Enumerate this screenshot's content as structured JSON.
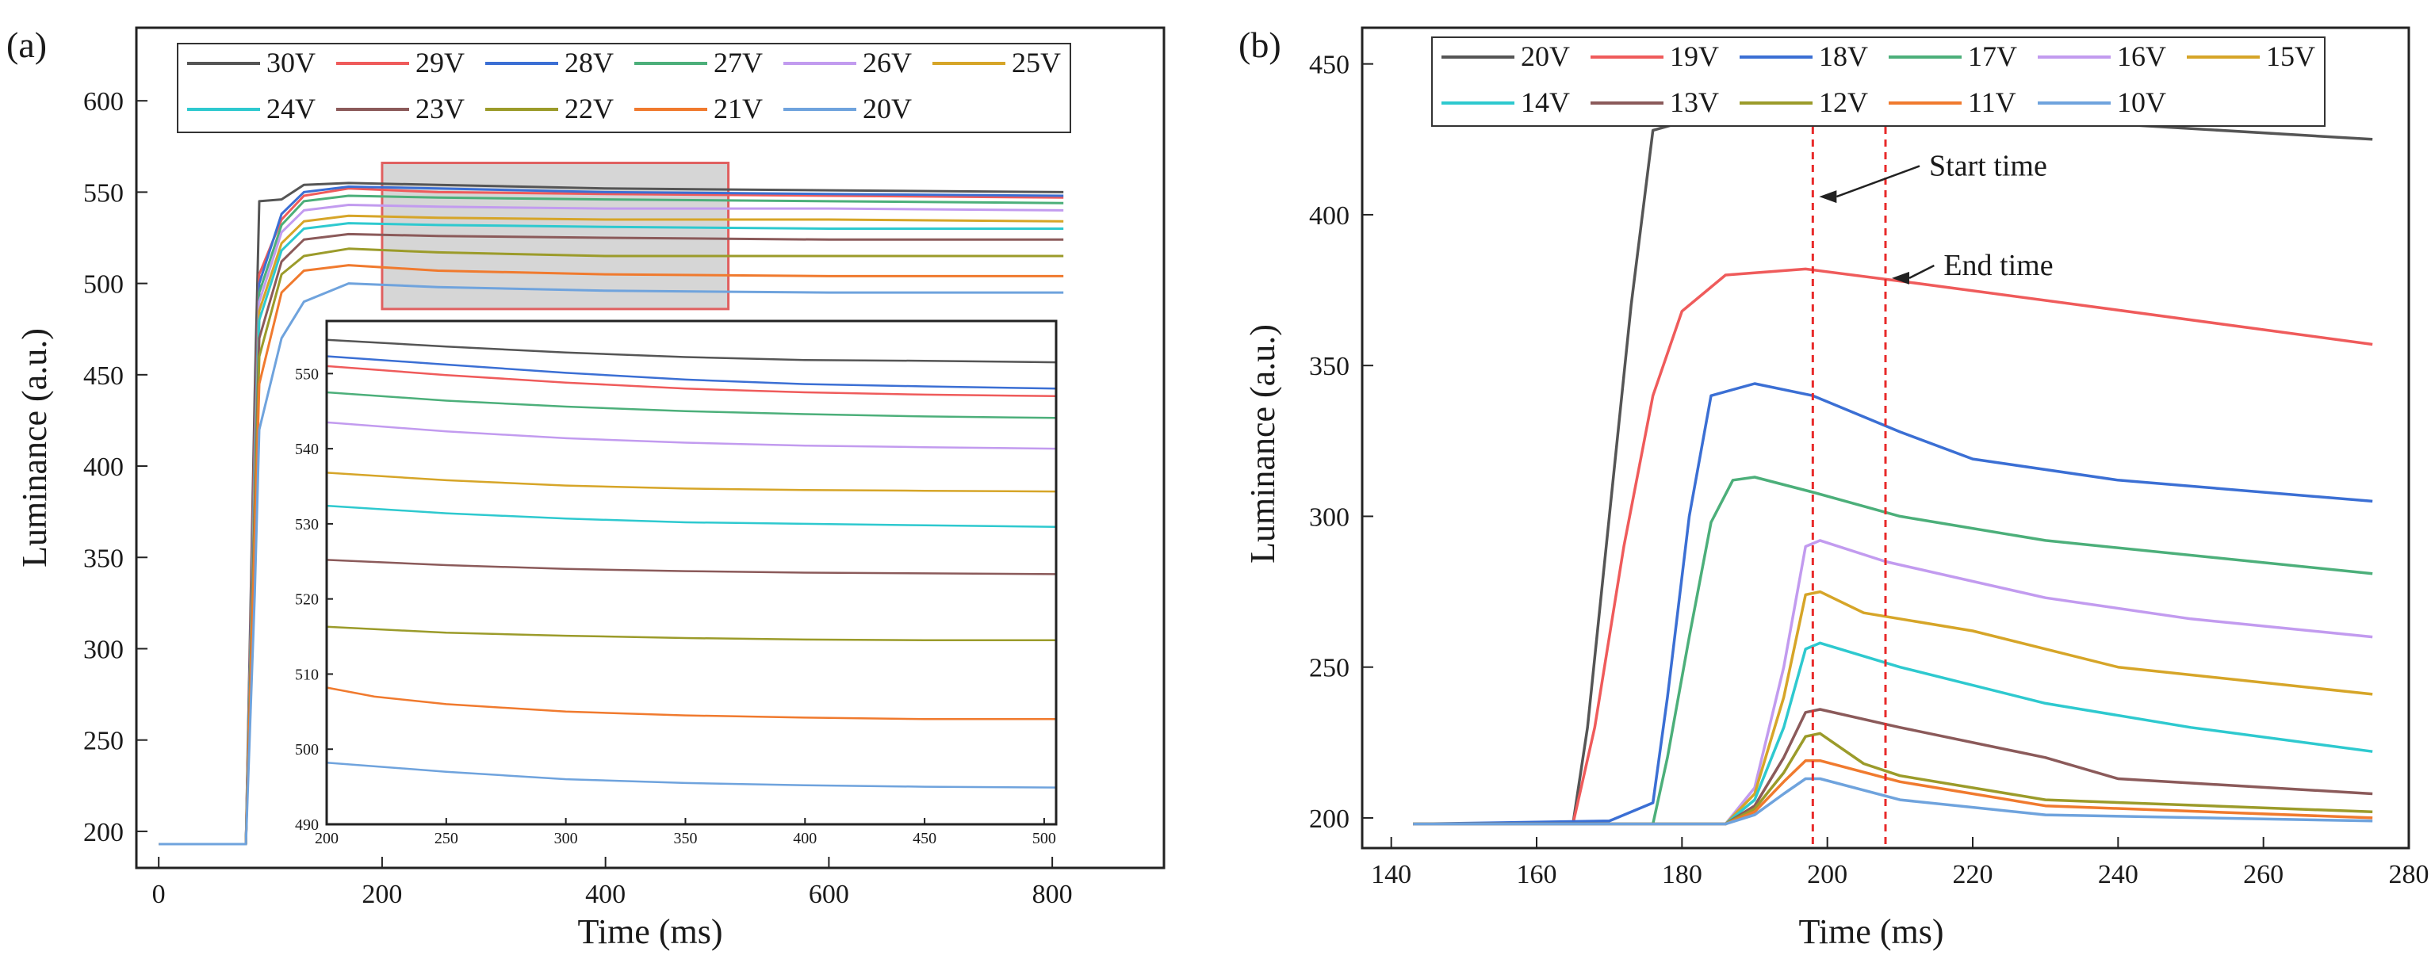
{
  "chart_data": [
    {
      "panel": "(a)",
      "type": "line",
      "xlabel": "Time (ms)",
      "ylabel": "Luminance (a.u.)",
      "xlim": [
        -20,
        900
      ],
      "ylim": [
        180,
        640
      ],
      "xticks": [
        "0",
        "200",
        "400",
        "600",
        "800"
      ],
      "yticks": [
        "200",
        "250",
        "300",
        "350",
        "400",
        "450",
        "500",
        "550",
        "600"
      ],
      "legend_position": "top",
      "highlight_region": {
        "x": [
          200,
          510
        ],
        "y": [
          486,
          566
        ]
      },
      "series": [
        {
          "name": "30V",
          "color": "#555555",
          "x": [
            0,
            78,
            86,
            90,
            110,
            130,
            170,
            250,
            400,
            600,
            810
          ],
          "y": [
            193,
            193,
            440,
            545,
            546,
            554,
            555,
            554,
            552,
            551,
            550
          ]
        },
        {
          "name": "29V",
          "color": "#ef5b5b",
          "x": [
            0,
            78,
            86,
            90,
            110,
            130,
            170,
            250,
            400,
            600,
            810
          ],
          "y": [
            193,
            193,
            420,
            505,
            535,
            548,
            552,
            550,
            549,
            548,
            547
          ]
        },
        {
          "name": "28V",
          "color": "#3b6fd4",
          "x": [
            0,
            78,
            86,
            90,
            110,
            130,
            170,
            250,
            400,
            600,
            810
          ],
          "y": [
            193,
            193,
            410,
            500,
            538,
            550,
            553,
            552,
            550,
            549,
            548
          ]
        },
        {
          "name": "27V",
          "color": "#4caf7a",
          "x": [
            0,
            78,
            86,
            90,
            110,
            130,
            170,
            250,
            400,
            600,
            810
          ],
          "y": [
            193,
            193,
            400,
            495,
            532,
            545,
            548,
            547,
            546,
            545,
            544
          ]
        },
        {
          "name": "26V",
          "color": "#c29bef",
          "x": [
            0,
            78,
            86,
            90,
            110,
            130,
            170,
            250,
            400,
            600,
            810
          ],
          "y": [
            193,
            193,
            395,
            490,
            528,
            540,
            543,
            542,
            541,
            541,
            540
          ]
        },
        {
          "name": "25V",
          "color": "#d6a528",
          "x": [
            0,
            78,
            86,
            90,
            110,
            130,
            170,
            250,
            400,
            600,
            810
          ],
          "y": [
            193,
            193,
            390,
            485,
            522,
            534,
            537,
            536,
            535,
            535,
            534
          ]
        },
        {
          "name": "24V",
          "color": "#2ec9cf",
          "x": [
            0,
            78,
            86,
            90,
            110,
            130,
            170,
            250,
            400,
            600,
            810
          ],
          "y": [
            193,
            193,
            385,
            480,
            518,
            530,
            533,
            532,
            531,
            530,
            530
          ]
        },
        {
          "name": "23V",
          "color": "#8b5a5a",
          "x": [
            0,
            78,
            86,
            90,
            110,
            130,
            170,
            250,
            400,
            600,
            810
          ],
          "y": [
            193,
            193,
            380,
            470,
            512,
            524,
            527,
            526,
            525,
            524,
            524
          ]
        },
        {
          "name": "22V",
          "color": "#9b9b2a",
          "x": [
            0,
            78,
            86,
            90,
            110,
            130,
            170,
            250,
            400,
            600,
            810
          ],
          "y": [
            193,
            193,
            370,
            460,
            505,
            515,
            519,
            517,
            515,
            515,
            515
          ]
        },
        {
          "name": "21V",
          "color": "#f07a2e",
          "x": [
            0,
            78,
            86,
            90,
            110,
            130,
            170,
            250,
            400,
            600,
            810
          ],
          "y": [
            193,
            193,
            360,
            445,
            495,
            507,
            510,
            507,
            505,
            504,
            504
          ]
        },
        {
          "name": "20V",
          "color": "#6fa3dd",
          "x": [
            0,
            78,
            86,
            90,
            110,
            130,
            170,
            250,
            400,
            600,
            810
          ],
          "y": [
            193,
            193,
            330,
            420,
            470,
            490,
            500,
            498,
            496,
            495,
            495
          ]
        }
      ]
    },
    {
      "panel": "inset",
      "type": "line",
      "xlim": [
        200,
        505
      ],
      "ylim": [
        490,
        557
      ],
      "xticks": [
        "200",
        "250",
        "300",
        "350",
        "400",
        "450",
        "500"
      ],
      "yticks": [
        "490",
        "500",
        "510",
        "520",
        "530",
        "540",
        "550"
      ],
      "series": [
        {
          "name": "30V",
          "color": "#555555",
          "x": [
            200,
            250,
            300,
            350,
            400,
            450,
            505
          ],
          "y": [
            554.5,
            553.6,
            552.8,
            552.2,
            551.8,
            551.7,
            551.5
          ]
        },
        {
          "name": "28V",
          "color": "#3b6fd4",
          "x": [
            200,
            250,
            300,
            350,
            400,
            450,
            505
          ],
          "y": [
            552.3,
            551.2,
            550.1,
            549.2,
            548.6,
            548.3,
            548.0
          ]
        },
        {
          "name": "29V",
          "color": "#ef5b5b",
          "x": [
            200,
            250,
            300,
            350,
            400,
            450,
            505
          ],
          "y": [
            551.0,
            549.8,
            548.8,
            548.0,
            547.5,
            547.2,
            547.0
          ]
        },
        {
          "name": "27V",
          "color": "#4caf7a",
          "x": [
            200,
            250,
            300,
            350,
            400,
            450,
            505
          ],
          "y": [
            547.5,
            546.4,
            545.6,
            545.0,
            544.6,
            544.3,
            544.1
          ]
        },
        {
          "name": "26V",
          "color": "#c29bef",
          "x": [
            200,
            250,
            300,
            350,
            400,
            450,
            505
          ],
          "y": [
            543.5,
            542.3,
            541.4,
            540.8,
            540.4,
            540.2,
            540.0
          ]
        },
        {
          "name": "25V",
          "color": "#d6a528",
          "x": [
            200,
            250,
            300,
            350,
            400,
            450,
            505
          ],
          "y": [
            536.8,
            535.8,
            535.1,
            534.7,
            534.5,
            534.4,
            534.3
          ]
        },
        {
          "name": "24V",
          "color": "#2ec9cf",
          "x": [
            200,
            250,
            300,
            350,
            400,
            450,
            505
          ],
          "y": [
            532.4,
            531.4,
            530.7,
            530.2,
            530.0,
            529.8,
            529.6
          ]
        },
        {
          "name": "23V",
          "color": "#8b5a5a",
          "x": [
            200,
            250,
            300,
            350,
            400,
            450,
            505
          ],
          "y": [
            525.2,
            524.5,
            524.0,
            523.7,
            523.5,
            523.4,
            523.3
          ]
        },
        {
          "name": "22V",
          "color": "#9b9b2a",
          "x": [
            200,
            250,
            300,
            350,
            400,
            450,
            505
          ],
          "y": [
            516.3,
            515.5,
            515.1,
            514.8,
            514.6,
            514.5,
            514.5
          ]
        },
        {
          "name": "21V",
          "color": "#f07a2e",
          "x": [
            200,
            220,
            250,
            300,
            350,
            400,
            450,
            505
          ],
          "y": [
            508.2,
            507.0,
            506.0,
            505.0,
            504.5,
            504.2,
            504.0,
            504.0
          ]
        },
        {
          "name": "20V",
          "color": "#6fa3dd",
          "x": [
            200,
            250,
            300,
            350,
            400,
            450,
            505
          ],
          "y": [
            498.2,
            497.0,
            496.0,
            495.5,
            495.2,
            495.0,
            494.9
          ]
        }
      ]
    },
    {
      "panel": "(b)",
      "type": "line",
      "xlabel": "Time (ms)",
      "ylabel": "Luminance (a.u.)",
      "xlim": [
        136,
        280
      ],
      "ylim": [
        190,
        462
      ],
      "xticks": [
        "140",
        "160",
        "180",
        "200",
        "220",
        "240",
        "260",
        "280"
      ],
      "yticks": [
        "200",
        "250",
        "300",
        "350",
        "400",
        "450"
      ],
      "legend_position": "top",
      "vlines": [
        198,
        208
      ],
      "annotations": [
        {
          "text": "Start time",
          "x": 198,
          "y": 406,
          "text_x": 214,
          "text_y": 413
        },
        {
          "text": "End time",
          "x": 208,
          "y": 379,
          "text_x": 216,
          "text_y": 380
        }
      ],
      "series": [
        {
          "name": "20V",
          "color": "#555555",
          "x": [
            143,
            165,
            167,
            170,
            173,
            176,
            185,
            198,
            215,
            240,
            275
          ],
          "y": [
            198,
            198,
            230,
            300,
            370,
            428,
            434,
            435,
            432,
            430,
            425
          ]
        },
        {
          "name": "19V",
          "color": "#ef5b5b",
          "x": [
            143,
            165,
            168,
            172,
            176,
            180,
            186,
            197,
            210,
            235,
            275
          ],
          "y": [
            198,
            198,
            230,
            290,
            340,
            368,
            380,
            382,
            378,
            370,
            357
          ]
        },
        {
          "name": "18V",
          "color": "#3b6fd4",
          "x": [
            143,
            170,
            176,
            178,
            181,
            184,
            190,
            198,
            210,
            220,
            240,
            275
          ],
          "y": [
            198,
            199,
            205,
            240,
            300,
            340,
            344,
            340,
            328,
            319,
            312,
            305
          ]
        },
        {
          "name": "17V",
          "color": "#4caf7a",
          "x": [
            143,
            176,
            178,
            181,
            184,
            187,
            190,
            198,
            210,
            230,
            275
          ],
          "y": [
            198,
            198,
            220,
            260,
            298,
            312,
            313,
            308,
            300,
            292,
            281
          ]
        },
        {
          "name": "16V",
          "color": "#c29bef",
          "x": [
            143,
            186,
            190,
            194,
            197,
            199,
            208,
            230,
            250,
            275
          ],
          "y": [
            198,
            198,
            210,
            250,
            290,
            292,
            285,
            273,
            266,
            260
          ]
        },
        {
          "name": "15V",
          "color": "#d6a528",
          "x": [
            143,
            186,
            190,
            194,
            197,
            199,
            205,
            210,
            220,
            240,
            275
          ],
          "y": [
            198,
            198,
            208,
            240,
            274,
            275,
            268,
            266,
            262,
            250,
            241
          ]
        },
        {
          "name": "14V",
          "color": "#2ec9cf",
          "x": [
            143,
            186,
            190,
            194,
            197,
            199,
            210,
            230,
            250,
            275
          ],
          "y": [
            198,
            198,
            206,
            230,
            256,
            258,
            250,
            238,
            230,
            222
          ]
        },
        {
          "name": "13V",
          "color": "#8b5a5a",
          "x": [
            143,
            186,
            190,
            194,
            197,
            199,
            210,
            230,
            240,
            275
          ],
          "y": [
            198,
            198,
            204,
            220,
            235,
            236,
            230,
            220,
            213,
            208
          ]
        },
        {
          "name": "12V",
          "color": "#9b9b2a",
          "x": [
            143,
            186,
            190,
            194,
            197,
            199,
            205,
            210,
            230,
            275
          ],
          "y": [
            198,
            198,
            203,
            215,
            227,
            228,
            218,
            214,
            206,
            202
          ]
        },
        {
          "name": "11V",
          "color": "#f07a2e",
          "x": [
            143,
            186,
            190,
            194,
            197,
            199,
            210,
            230,
            275
          ],
          "y": [
            198,
            198,
            202,
            212,
            219,
            219,
            212,
            204,
            200
          ]
        },
        {
          "name": "10V",
          "color": "#6fa3dd",
          "x": [
            143,
            186,
            190,
            194,
            197,
            199,
            210,
            230,
            275
          ],
          "y": [
            198,
            198,
            201,
            208,
            213,
            213,
            206,
            201,
            199
          ]
        }
      ]
    }
  ]
}
